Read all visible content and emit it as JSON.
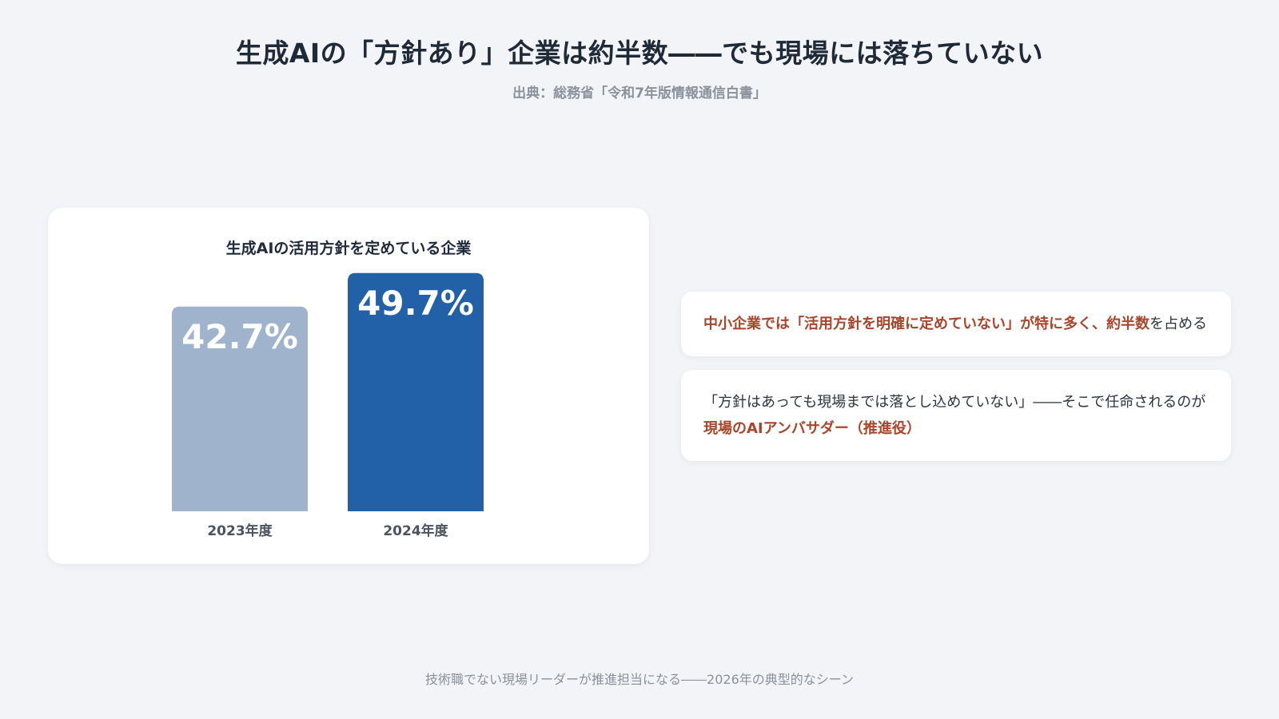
{
  "header": {
    "title": "生成AIの「方針あり」企業は約半数――でも現場には落ちていない",
    "source": "出典：総務省「令和7年版情報通信白書」"
  },
  "chart_data": {
    "type": "bar",
    "title": "生成AIの活用方針を定めている企業",
    "categories": [
      "2023年度",
      "2024年度"
    ],
    "values": [
      42.7,
      49.7
    ],
    "value_labels": [
      "42.7%",
      "49.7%"
    ],
    "ylim": [
      0,
      50
    ],
    "grid": false,
    "legend": "none",
    "colors": [
      "#9fb4cc",
      "#2260a8"
    ]
  },
  "notes": [
    {
      "hl1": "中小企業では「活用方針を明確に定めていない」が特に多く、約半数",
      "text1": "を占める"
    },
    {
      "text1": "「方針はあっても現場までは落とし込めていない」――そこで任命されるのが",
      "hl1": "現場のAIアンバサダー（推進役）"
    }
  ],
  "footer": {
    "caption": "技術職でない現場リーダーが推進担当になる――2026年の典型的なシーン"
  },
  "colors": {
    "background": "#f2f4f7",
    "card": "#ffffff",
    "accent": "#a8452a",
    "bar_primary": "#2260a8",
    "bar_secondary": "#9fb4cc"
  }
}
